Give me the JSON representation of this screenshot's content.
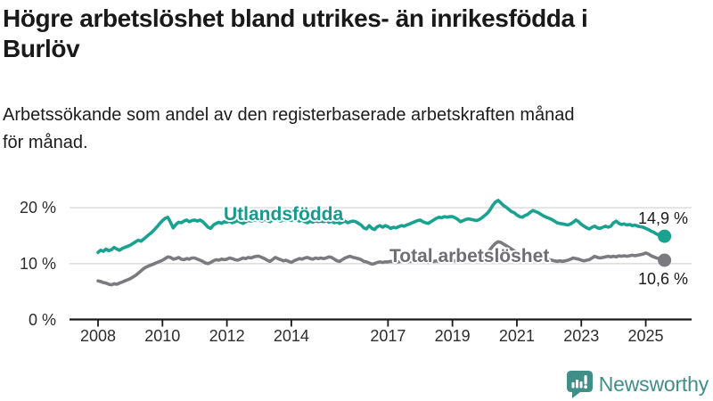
{
  "header": {
    "title_line1": "Högre arbetslöshet bland utrikes- än inrikesfödda i",
    "title_line2": "Burlöv",
    "subtitle_line1": "Arbetssökande som andel av den registerbaserade arbetskraften månad",
    "subtitle_line2": "för månad."
  },
  "chart_data": {
    "type": "line",
    "title": "Högre arbetslöshet bland utrikes- än inrikesfödda i Burlöv",
    "subtitle": "Arbetssökande som andel av den registerbaserade arbetskraften månad för månad.",
    "x_start": 2008,
    "x_frequency": "monthly",
    "x_end": "2025-08",
    "x_ticks": [
      2008,
      2010,
      2012,
      2014,
      2017,
      2019,
      2021,
      2023,
      2025
    ],
    "y_ticks": [
      0,
      10,
      20
    ],
    "y_tick_suffix": " %",
    "ylim": [
      0,
      22.5
    ],
    "grid": "horizontal-only",
    "grid_color": "#d9d9d9",
    "axis_color": "#1a1a1a",
    "legend_position": "inline-on-line",
    "series": [
      {
        "id": "utlandsfodda",
        "name": "Utlandsfödda",
        "color": "#1aa291",
        "label_color": "#17998b",
        "end_label": "14,9 %",
        "end_value": 14.9,
        "values": [
          12.0,
          12.4,
          12.2,
          12.6,
          12.3,
          12.5,
          12.9,
          12.6,
          12.4,
          12.7,
          12.9,
          13.1,
          13.3,
          13.6,
          13.9,
          14.2,
          14.0,
          14.4,
          14.8,
          15.2,
          15.6,
          16.1,
          16.6,
          17.2,
          17.7,
          18.1,
          18.3,
          17.4,
          16.4,
          17.0,
          17.4,
          17.3,
          17.6,
          17.8,
          17.5,
          17.7,
          17.8,
          17.6,
          17.8,
          17.5,
          17.0,
          16.5,
          16.3,
          16.9,
          17.2,
          17.4,
          17.2,
          17.5,
          17.4,
          17.6,
          17.3,
          17.5,
          17.7,
          17.4,
          17.2,
          17.5,
          17.7,
          17.6,
          17.8,
          17.7,
          17.8,
          17.6,
          17.9,
          17.7,
          17.5,
          17.8,
          18.0,
          17.8,
          17.6,
          17.9,
          17.7,
          17.8,
          17.7,
          17.9,
          17.8,
          17.6,
          17.8,
          17.5,
          17.3,
          17.6,
          17.4,
          17.7,
          17.5,
          17.6,
          17.5,
          17.7,
          17.4,
          17.6,
          17.3,
          17.5,
          17.2,
          17.4,
          17.6,
          17.3,
          17.5,
          17.6,
          17.5,
          17.2,
          16.9,
          16.4,
          16.2,
          16.8,
          16.3,
          16.1,
          16.6,
          16.8,
          16.5,
          16.8,
          16.6,
          16.3,
          16.5,
          16.4,
          16.6,
          16.8,
          16.7,
          16.9,
          17.1,
          17.3,
          17.5,
          17.7,
          17.8,
          17.5,
          17.3,
          17.2,
          17.5,
          17.8,
          18.1,
          18.3,
          18.2,
          18.4,
          18.3,
          18.4,
          18.4,
          18.2,
          17.9,
          17.5,
          17.7,
          17.9,
          18.0,
          17.9,
          17.8,
          17.7,
          17.9,
          18.2,
          18.6,
          19.0,
          19.6,
          20.4,
          21.0,
          21.3,
          20.9,
          20.4,
          20.1,
          19.7,
          19.3,
          19.1,
          18.7,
          18.4,
          18.3,
          18.6,
          18.8,
          19.2,
          19.5,
          19.3,
          19.1,
          18.8,
          18.5,
          18.3,
          18.1,
          17.9,
          17.6,
          17.3,
          17.2,
          17.1,
          17.0,
          16.9,
          17.1,
          17.4,
          17.8,
          17.5,
          17.0,
          16.7,
          16.4,
          16.2,
          16.5,
          16.7,
          16.4,
          16.3,
          16.5,
          16.7,
          16.5,
          16.7,
          17.3,
          17.6,
          17.2,
          17.0,
          17.1,
          16.9,
          17.0,
          16.8,
          16.9,
          16.7,
          16.6,
          16.5,
          16.3,
          16.1,
          15.8,
          15.6,
          15.3,
          15.1,
          15.0,
          14.9
        ]
      },
      {
        "id": "total",
        "name": "Total arbetslöshet",
        "color": "#7b7b7f",
        "label_color": "#6e6e73",
        "end_label": "10,6 %",
        "end_value": 10.6,
        "values": [
          6.9,
          6.8,
          6.6,
          6.5,
          6.3,
          6.2,
          6.4,
          6.3,
          6.5,
          6.7,
          6.9,
          7.1,
          7.3,
          7.6,
          7.9,
          8.3,
          8.7,
          9.1,
          9.4,
          9.6,
          9.8,
          10.0,
          10.2,
          10.4,
          10.6,
          10.9,
          11.2,
          11.1,
          10.8,
          10.9,
          11.1,
          10.8,
          10.7,
          10.9,
          10.8,
          11.0,
          11.0,
          10.8,
          10.6,
          10.4,
          10.1,
          10.0,
          10.2,
          10.5,
          10.7,
          10.6,
          10.8,
          10.7,
          10.8,
          11.0,
          10.9,
          10.7,
          10.6,
          10.8,
          11.0,
          10.9,
          11.1,
          11.0,
          11.2,
          11.3,
          11.3,
          11.1,
          10.9,
          10.6,
          10.4,
          10.7,
          11.1,
          10.9,
          10.7,
          10.5,
          10.6,
          10.4,
          10.2,
          10.5,
          10.7,
          10.9,
          10.8,
          11.0,
          11.1,
          10.9,
          10.8,
          11.0,
          10.9,
          11.0,
          10.9,
          11.0,
          11.2,
          11.1,
          10.8,
          10.5,
          10.4,
          10.7,
          11.0,
          11.2,
          11.3,
          11.1,
          11.0,
          10.9,
          10.7,
          10.4,
          10.3,
          10.1,
          9.9,
          10.0,
          10.2,
          10.3,
          10.2,
          10.3,
          10.3,
          10.4,
          10.3,
          10.2,
          10.3,
          10.5,
          10.4,
          10.3,
          10.4,
          10.5,
          10.4,
          10.5,
          10.5,
          10.4,
          10.3,
          10.2,
          10.3,
          10.4,
          10.5,
          10.4,
          10.3,
          10.4,
          10.5,
          10.6,
          10.6,
          10.5,
          10.4,
          10.5,
          10.6,
          10.7,
          10.8,
          10.7,
          10.6,
          10.7,
          10.8,
          10.9,
          11.4,
          11.9,
          12.5,
          13.1,
          13.6,
          13.9,
          13.8,
          13.5,
          13.2,
          12.9,
          12.6,
          12.3,
          12.1,
          11.9,
          11.8,
          11.9,
          11.7,
          11.5,
          11.3,
          11.2,
          11.1,
          11.0,
          10.9,
          10.8,
          10.7,
          10.6,
          10.5,
          10.4,
          10.5,
          10.4,
          10.5,
          10.6,
          10.8,
          11.0,
          10.9,
          10.8,
          10.6,
          10.5,
          10.6,
          10.7,
          11.0,
          11.3,
          11.1,
          11.0,
          11.1,
          11.2,
          11.3,
          11.2,
          11.3,
          11.2,
          11.4,
          11.3,
          11.4,
          11.3,
          11.4,
          11.5,
          11.4,
          11.5,
          11.6,
          11.7,
          11.9,
          11.7,
          11.4,
          11.2,
          11.0,
          10.9,
          10.7,
          10.6
        ]
      }
    ]
  },
  "footer": {
    "brand": "Newsworthy",
    "brand_color": "#3f8e88",
    "logo_icon": "newsworthy-chart-bubble-icon"
  }
}
